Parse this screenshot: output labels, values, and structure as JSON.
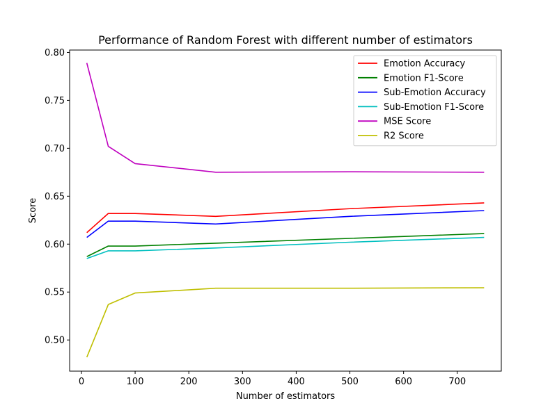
{
  "chart_data": {
    "type": "line",
    "title": "Performance of Random Forest with different number of estimators",
    "xlabel": "Number of estimators",
    "ylabel": "Score",
    "x": [
      10,
      50,
      100,
      250,
      500,
      750
    ],
    "xlim": [
      -22,
      782
    ],
    "ylim": [
      0.4675,
      0.8025
    ],
    "xticks": [
      0,
      100,
      200,
      300,
      400,
      500,
      600,
      700
    ],
    "yticks": [
      "0.50",
      "0.55",
      "0.60",
      "0.65",
      "0.70",
      "0.75",
      "0.80"
    ],
    "legend_position": "top-right",
    "grid": false,
    "series": [
      {
        "name": "Emotion Accuracy",
        "color": "#ff0000",
        "values": [
          0.612,
          0.632,
          0.632,
          0.629,
          0.637,
          0.643
        ]
      },
      {
        "name": "Emotion F1-Score",
        "color": "#008000",
        "values": [
          0.587,
          0.598,
          0.598,
          0.601,
          0.606,
          0.611
        ]
      },
      {
        "name": "Sub-Emotion Accuracy",
        "color": "#0000ff",
        "values": [
          0.607,
          0.624,
          0.624,
          0.621,
          0.629,
          0.635
        ]
      },
      {
        "name": "Sub-Emotion F1-Score",
        "color": "#00bfbf",
        "values": [
          0.585,
          0.593,
          0.593,
          0.596,
          0.602,
          0.607
        ]
      },
      {
        "name": "MSE Score",
        "color": "#bf00bf",
        "values": [
          0.789,
          0.702,
          0.684,
          0.675,
          0.6755,
          0.675
        ]
      },
      {
        "name": "R2 Score",
        "color": "#bfbf00",
        "values": [
          0.482,
          0.537,
          0.549,
          0.554,
          0.554,
          0.5545
        ]
      }
    ]
  }
}
